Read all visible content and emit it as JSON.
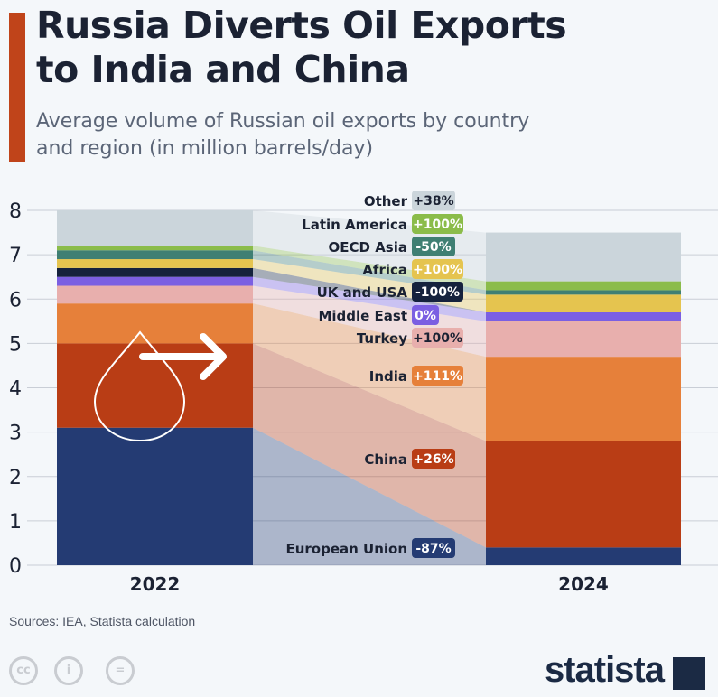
{
  "header": {
    "title": "Russia Diverts Oil Exports to India and China",
    "subtitle": "Average volume of Russian oil exports by country and region (in million barrels/day)"
  },
  "footer": {
    "source": "Sources: IEA, Statista calculation",
    "brand": "statista",
    "license_icons": [
      "cc-icon",
      "attribution-icon",
      "no-derivatives-icon"
    ]
  },
  "colors": {
    "accent": "#c0441a",
    "background": "#f4f7fa"
  },
  "chart_data": {
    "type": "bar",
    "stacked": true,
    "categories": [
      "2022",
      "2024"
    ],
    "ylim": [
      0,
      8
    ],
    "yticks": [
      0,
      1,
      2,
      3,
      4,
      5,
      6,
      7,
      8
    ],
    "grid": true,
    "series": [
      {
        "name": "European Union",
        "values": [
          3.1,
          0.4
        ],
        "change": "-87%",
        "color": "#243b73"
      },
      {
        "name": "China",
        "values": [
          1.9,
          2.4
        ],
        "change": "+26%",
        "color": "#b93d15"
      },
      {
        "name": "India",
        "values": [
          0.9,
          1.9
        ],
        "change": "+111%",
        "color": "#e6803a"
      },
      {
        "name": "Turkey",
        "values": [
          0.4,
          0.8
        ],
        "change": "+100%",
        "color": "#e8afad"
      },
      {
        "name": "Middle East",
        "values": [
          0.2,
          0.2
        ],
        "change": "0%",
        "color": "#7b5fe2"
      },
      {
        "name": "UK and USA",
        "values": [
          0.2,
          0.0
        ],
        "change": "-100%",
        "color": "#15223d"
      },
      {
        "name": "Africa",
        "values": [
          0.2,
          0.4
        ],
        "change": "+100%",
        "color": "#e5c44f"
      },
      {
        "name": "OECD Asia",
        "values": [
          0.2,
          0.1
        ],
        "change": "-50%",
        "color": "#3f7f73"
      },
      {
        "name": "Latin America",
        "values": [
          0.1,
          0.2
        ],
        "change": "+100%",
        "color": "#8bbc4a"
      },
      {
        "name": "Other",
        "values": [
          0.8,
          1.1
        ],
        "change": "+38%",
        "color": "#cbd5db"
      }
    ]
  }
}
